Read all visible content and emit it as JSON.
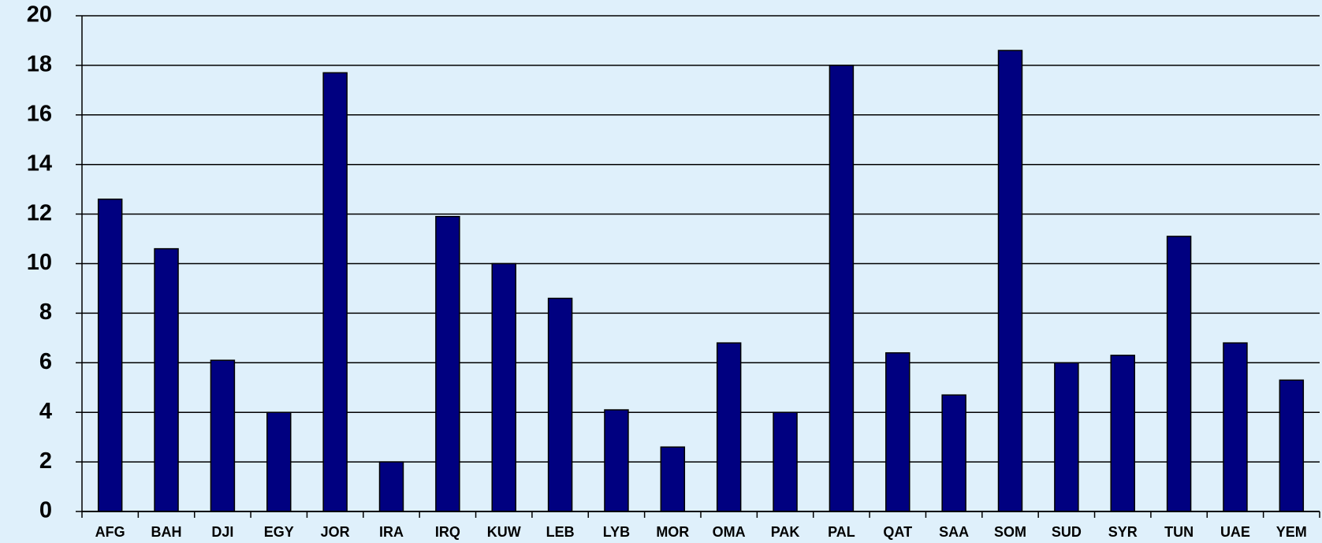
{
  "chart_data": {
    "type": "bar",
    "categories": [
      "AFG",
      "BAH",
      "DJI",
      "EGY",
      "JOR",
      "IRA",
      "IRQ",
      "KUW",
      "LEB",
      "LYB",
      "MOR",
      "OMA",
      "PAK",
      "PAL",
      "QAT",
      "SAA",
      "SOM",
      "SUD",
      "SYR",
      "TUN",
      "UAE",
      "YEM"
    ],
    "values": [
      12.6,
      10.6,
      6.1,
      4.0,
      17.7,
      2.0,
      11.9,
      10.0,
      8.6,
      4.1,
      2.6,
      6.8,
      4.0,
      18.0,
      6.4,
      4.7,
      18.6,
      6.0,
      6.3,
      11.1,
      6.8,
      5.3
    ],
    "color": "#000080",
    "ylim": [
      0,
      20
    ],
    "yticks": [
      0,
      2,
      4,
      6,
      8,
      10,
      12,
      14,
      16,
      18,
      20
    ],
    "grid": true
  }
}
